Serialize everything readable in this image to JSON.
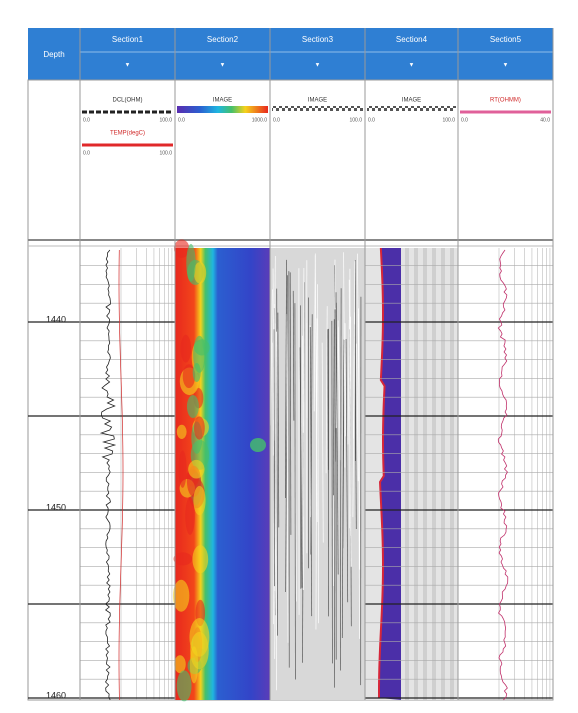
{
  "header": {
    "depth_title": "Depth",
    "tracks": [
      {
        "title": "Section1",
        "selector": "▼"
      },
      {
        "title": "Section2",
        "selector": "▼"
      },
      {
        "title": "Section3",
        "selector": "▼"
      },
      {
        "title": "Section4",
        "selector": "▼"
      },
      {
        "title": "Section5",
        "selector": "▼"
      }
    ]
  },
  "curve_headers": [
    [
      {
        "name": "DCL(OHM)",
        "min": "0.0",
        "max": "100.0"
      },
      {
        "name": "TEMP(degC)",
        "min": "0.0",
        "max": "100.0"
      }
    ],
    [
      {
        "name": "IMAGE",
        "min": "0.0",
        "max": "1000.0"
      }
    ],
    [
      {
        "name": "IMAGE",
        "min": "0.0",
        "max": "100.0"
      }
    ],
    [
      {
        "name": "IMAGE",
        "min": "0.0",
        "max": "100.0"
      }
    ],
    [
      {
        "name": "RT(OHMM)",
        "min": "0.0",
        "max": "40.0"
      }
    ]
  ],
  "depth_ticks": [
    1440,
    1450,
    1460
  ]
}
